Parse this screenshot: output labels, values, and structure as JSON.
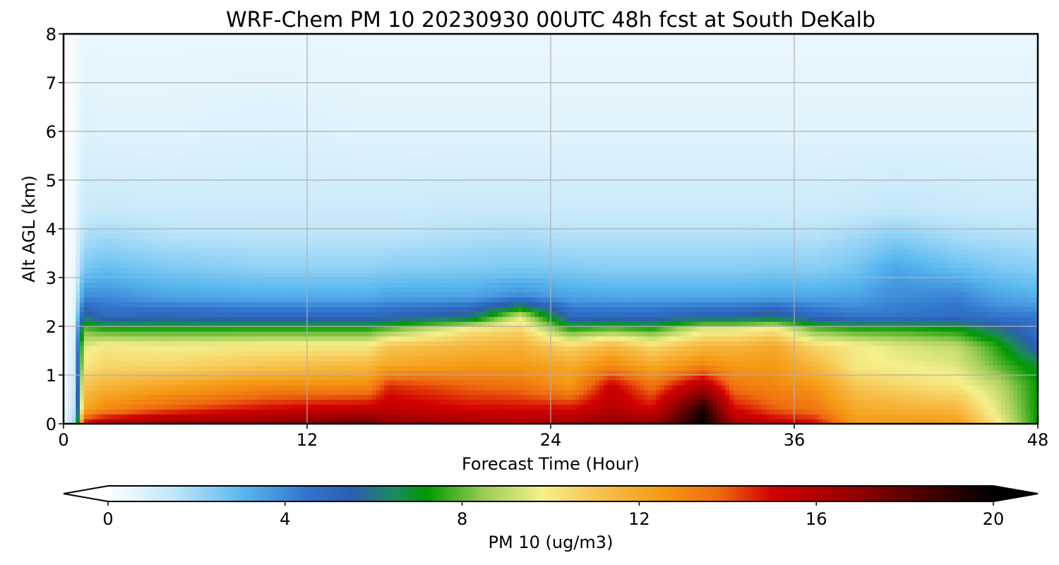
{
  "chart_data": {
    "type": "heatmap",
    "title": "WRF-Chem PM 10  20230930 00UTC 48h fcst at South DeKalb",
    "xlabel": "Forecast Time (Hour)",
    "ylabel": "Alt AGL (km)",
    "xlim": [
      0,
      48
    ],
    "ylim": [
      0,
      8
    ],
    "xticks": [
      "0",
      "12",
      "24",
      "36",
      "48"
    ],
    "yticks": [
      "0",
      "1",
      "2",
      "3",
      "4",
      "5",
      "6",
      "7",
      "8"
    ],
    "grid": true,
    "colorbar": {
      "label": "PM 10  (ug/m3)",
      "range": [
        0,
        20
      ],
      "ticks": [
        "0",
        "4",
        "8",
        "12",
        "16",
        "20"
      ],
      "extend": "both",
      "stops": [
        {
          "v": 0,
          "c": "#ffffff"
        },
        {
          "v": 1.5,
          "c": "#bfe6fa"
        },
        {
          "v": 3,
          "c": "#5ab9f0"
        },
        {
          "v": 4.5,
          "c": "#3173cc"
        },
        {
          "v": 5.5,
          "c": "#2c5fae"
        },
        {
          "v": 6.5,
          "c": "#1c8a5a"
        },
        {
          "v": 7.2,
          "c": "#009900"
        },
        {
          "v": 8.5,
          "c": "#9ccc55"
        },
        {
          "v": 9.8,
          "c": "#f5f08c"
        },
        {
          "v": 11,
          "c": "#f7c552"
        },
        {
          "v": 12.5,
          "c": "#f59a14"
        },
        {
          "v": 13.8,
          "c": "#ef6a10"
        },
        {
          "v": 15,
          "c": "#d20000"
        },
        {
          "v": 17,
          "c": "#8c0000"
        },
        {
          "v": 19,
          "c": "#300000"
        },
        {
          "v": 20,
          "c": "#000000"
        }
      ]
    },
    "profile_levels": [
      0,
      0.3,
      0.8,
      1.2,
      1.6,
      1.95,
      2.2,
      2.6,
      3.2,
      3.8,
      4.4,
      6,
      8
    ],
    "series": [
      {
        "t": 0,
        "values": [
          0.5,
          0.3,
          0.2,
          0.2,
          0.2,
          0.1,
          0.1,
          0.1,
          0.1,
          0.1,
          0.1,
          0.1,
          0.1
        ]
      },
      {
        "t": 0.5,
        "values": [
          2,
          1.5,
          1.2,
          1,
          0.9,
          0.7,
          0.6,
          0.5,
          0.4,
          0.3,
          0.3,
          0.2,
          0.2
        ]
      },
      {
        "t": 1,
        "values": [
          15,
          12,
          11,
          10,
          9.5,
          8,
          6,
          4,
          2.5,
          1.8,
          1.2,
          0.8,
          0.5
        ]
      },
      {
        "t": 2,
        "values": [
          16,
          13,
          11.5,
          10.5,
          10,
          7.5,
          5,
          4,
          2.8,
          2,
          1.3,
          0.7,
          0.5
        ]
      },
      {
        "t": 5,
        "values": [
          17,
          14,
          12,
          10.5,
          9.8,
          7.5,
          5.2,
          3.5,
          2.5,
          1.7,
          1.2,
          0.7,
          0.5
        ]
      },
      {
        "t": 10,
        "values": [
          17,
          15,
          12.8,
          11,
          10,
          7.5,
          5,
          3.3,
          2.2,
          1.6,
          1.2,
          0.8,
          0.5
        ]
      },
      {
        "t": 15,
        "values": [
          18,
          15.5,
          12.8,
          11.5,
          10,
          7.5,
          5,
          3.3,
          2.2,
          1.6,
          1.2,
          0.7,
          0.5
        ]
      },
      {
        "t": 16,
        "values": [
          17,
          15.5,
          14.5,
          12,
          11,
          8,
          5.2,
          3.5,
          2.3,
          1.6,
          1.2,
          0.7,
          0.5
        ]
      },
      {
        "t": 20,
        "values": [
          16.5,
          15,
          13.8,
          12.5,
          11.5,
          10,
          6,
          3.5,
          2.4,
          1.8,
          1.3,
          0.7,
          0.5
        ]
      },
      {
        "t": 22.5,
        "values": [
          16,
          15,
          13.5,
          12.5,
          11.7,
          10.5,
          9.5,
          4,
          2.5,
          1.9,
          1.3,
          0.7,
          0.5
        ]
      },
      {
        "t": 25,
        "values": [
          16.5,
          15,
          12.5,
          12,
          10.5,
          7.5,
          5,
          3.5,
          2.4,
          1.7,
          1.2,
          0.7,
          0.5
        ]
      },
      {
        "t": 27,
        "values": [
          17,
          15.8,
          15.2,
          13,
          11.5,
          8,
          5,
          3.4,
          2.3,
          1.7,
          1.2,
          0.7,
          0.5
        ]
      },
      {
        "t": 29,
        "values": [
          17,
          15,
          13.5,
          12,
          10.5,
          7.5,
          5,
          3.4,
          2.3,
          1.7,
          1.2,
          0.7,
          0.5
        ]
      },
      {
        "t": 31.5,
        "values": [
          20,
          19.5,
          16,
          13,
          11.5,
          9.5,
          5.5,
          3.4,
          2.3,
          1.7,
          1.2,
          0.7,
          0.5
        ]
      },
      {
        "t": 33,
        "values": [
          16.5,
          15,
          13.5,
          12.5,
          11.5,
          9.5,
          5.5,
          3.4,
          2.3,
          1.7,
          1.2,
          0.7,
          0.5
        ]
      },
      {
        "t": 35,
        "values": [
          15.5,
          14,
          13,
          12.5,
          12,
          10,
          6,
          3.5,
          2.4,
          1.8,
          1.2,
          0.7,
          0.5
        ]
      },
      {
        "t": 37,
        "values": [
          15,
          13.5,
          12.5,
          11.5,
          10.5,
          8,
          5,
          3.4,
          2.3,
          1.7,
          1.2,
          0.7,
          0.5
        ]
      },
      {
        "t": 39,
        "values": [
          12.5,
          12,
          11,
          10,
          10,
          7.5,
          4.5,
          3.5,
          2.6,
          2,
          1.3,
          0.7,
          0.5
        ]
      },
      {
        "t": 41,
        "values": [
          12.5,
          11.8,
          10.5,
          9.8,
          9.5,
          7.5,
          4.5,
          4,
          3.4,
          2.4,
          1.4,
          0.7,
          0.5
        ]
      },
      {
        "t": 44,
        "values": [
          12.5,
          11.5,
          10,
          9.5,
          9,
          7.2,
          4.8,
          4.2,
          2.8,
          1.9,
          1.3,
          0.7,
          0.5
        ]
      },
      {
        "t": 46,
        "values": [
          10,
          9.5,
          9,
          8,
          7.5,
          6,
          4.5,
          3.5,
          2.5,
          1.8,
          1.2,
          0.7,
          0.5
        ]
      },
      {
        "t": 48,
        "values": [
          7.2,
          7.2,
          7.2,
          6.8,
          5.2,
          4.6,
          4.4,
          3.2,
          2.3,
          1.7,
          1.2,
          0.7,
          0.5
        ]
      }
    ]
  }
}
